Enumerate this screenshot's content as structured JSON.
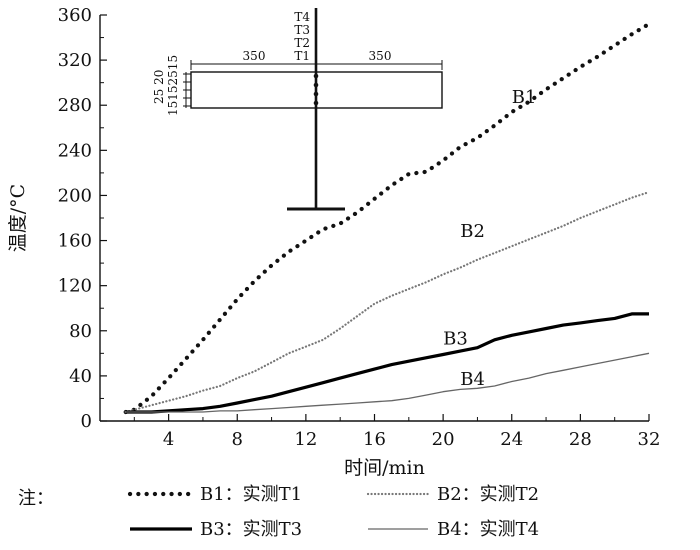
{
  "chart_data": {
    "type": "line",
    "xlabel": "时间/min",
    "ylabel": "温度/°C",
    "xlim": [
      0,
      32
    ],
    "ylim": [
      0,
      360
    ],
    "x_ticks": [
      4,
      8,
      12,
      16,
      20,
      24,
      28,
      32
    ],
    "y_ticks": [
      0,
      40,
      80,
      120,
      160,
      200,
      240,
      280,
      320,
      360
    ],
    "grid": false,
    "legend": {
      "placement": "bottom",
      "prefix": "注：",
      "entries": [
        "B1：实测T1",
        "B2：实测T2",
        "B3：实测T3",
        "B4：实测T4"
      ]
    },
    "series": [
      {
        "name": "B1",
        "style": "dotted-thick",
        "color": "#111111",
        "x": [
          1.5,
          2,
          3,
          4,
          5,
          6,
          7,
          8,
          9,
          10,
          11,
          12,
          13,
          14,
          15,
          16,
          17,
          18,
          19,
          20,
          21,
          22,
          23,
          24,
          25,
          26,
          27,
          28,
          29,
          30,
          31,
          32
        ],
        "y": [
          8,
          10,
          22,
          38,
          55,
          72,
          90,
          108,
          124,
          138,
          150,
          160,
          170,
          175,
          185,
          197,
          209,
          219,
          221,
          231,
          243,
          251,
          262,
          274,
          283,
          294,
          304,
          314,
          323,
          333,
          343,
          352
        ]
      },
      {
        "name": "B2",
        "style": "dotted-thin",
        "color": "#777777",
        "x": [
          1.5,
          2,
          3,
          4,
          5,
          6,
          7,
          8,
          9,
          10,
          11,
          12,
          13,
          14,
          15,
          16,
          17,
          18,
          19,
          20,
          21,
          22,
          23,
          24,
          25,
          26,
          27,
          28,
          29,
          30,
          31,
          32
        ],
        "y": [
          8,
          10,
          14,
          18,
          22,
          27,
          31,
          38,
          44,
          52,
          60,
          66,
          72,
          82,
          93,
          104,
          111,
          117,
          123,
          130,
          136,
          143,
          149,
          155,
          161,
          167,
          173,
          180,
          186,
          192,
          198,
          203
        ]
      },
      {
        "name": "B3",
        "style": "solid-thick",
        "color": "#000000",
        "x": [
          1.5,
          2,
          3,
          4,
          5,
          6,
          7,
          8,
          9,
          10,
          11,
          12,
          13,
          14,
          15,
          16,
          17,
          18,
          19,
          20,
          21,
          22,
          23,
          24,
          25,
          26,
          27,
          28,
          29,
          30,
          31,
          32
        ],
        "y": [
          8,
          8,
          8,
          9,
          10,
          11,
          13,
          16,
          19,
          22,
          26,
          30,
          34,
          38,
          42,
          46,
          50,
          53,
          56,
          59,
          62,
          65,
          72,
          76,
          79,
          82,
          85,
          87,
          89,
          91,
          95,
          95
        ]
      },
      {
        "name": "B4",
        "style": "solid-thin",
        "color": "#666666",
        "x": [
          1.5,
          2,
          3,
          4,
          5,
          6,
          7,
          8,
          9,
          10,
          11,
          12,
          13,
          14,
          15,
          16,
          17,
          18,
          19,
          20,
          21,
          22,
          23,
          24,
          25,
          26,
          27,
          28,
          29,
          30,
          31,
          32
        ],
        "y": [
          8,
          8,
          8,
          8,
          8,
          8,
          9,
          9,
          10,
          11,
          12,
          13,
          14,
          15,
          16,
          17,
          18,
          20,
          23,
          26,
          28,
          29,
          31,
          35,
          38,
          42,
          45,
          48,
          51,
          54,
          57,
          60
        ]
      }
    ]
  },
  "inset": {
    "sensors": [
      "T4",
      "T3",
      "T2",
      "T1"
    ],
    "span_left": "350",
    "span_right": "350",
    "flange_dims": [
      "25",
      "20",
      "15",
      "15",
      "25",
      "15"
    ]
  }
}
